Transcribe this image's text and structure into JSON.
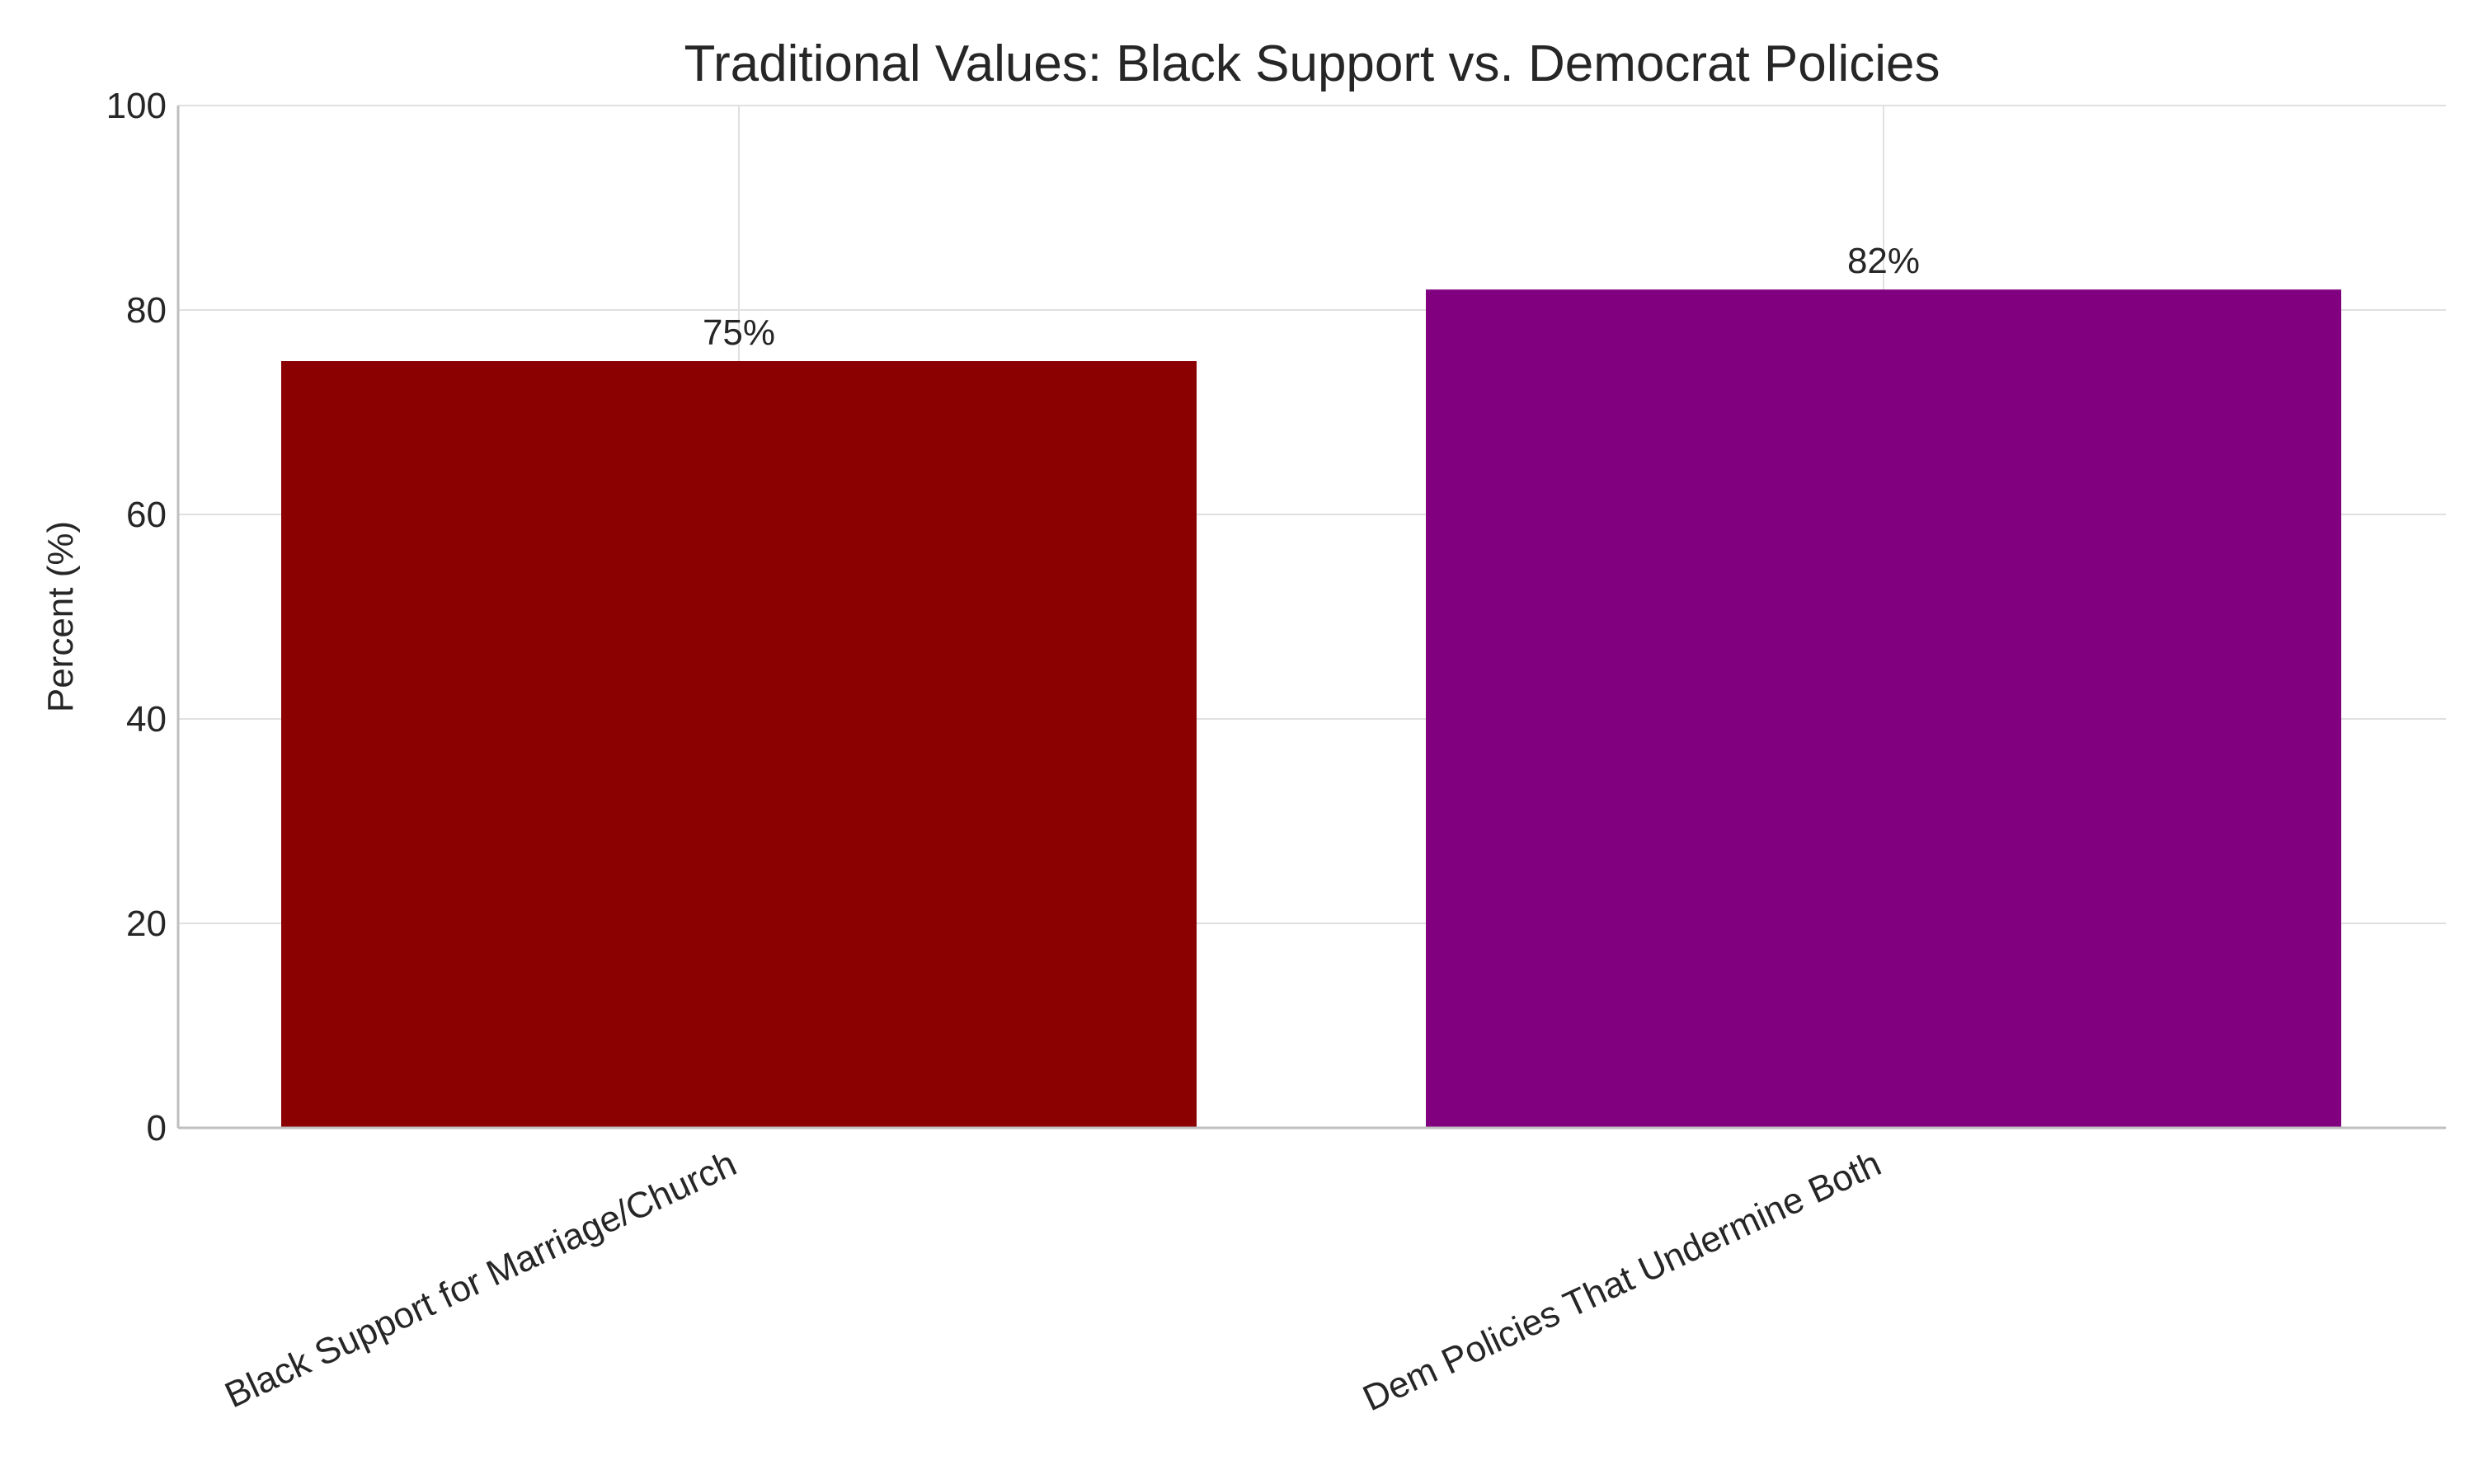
{
  "chart_data": {
    "type": "bar",
    "title": "Traditional Values: Black Support vs. Democrat Policies",
    "xlabel": "",
    "ylabel": "Percent (%)",
    "ylim": [
      0,
      100
    ],
    "yticks": [
      0,
      20,
      40,
      60,
      80,
      100
    ],
    "categories": [
      "Black Support for Marriage/Church",
      "Dem Policies That Undermine Both"
    ],
    "values": [
      75,
      82
    ],
    "value_labels": [
      "75%",
      "82%"
    ],
    "colors": [
      "#8b0000",
      "#800080"
    ],
    "grid": true,
    "legend": "none"
  }
}
